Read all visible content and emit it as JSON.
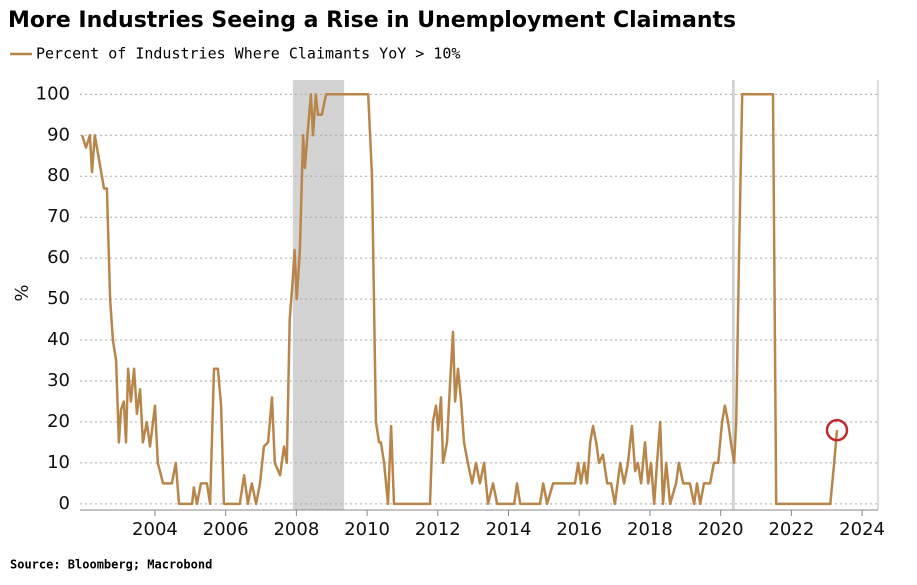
{
  "chart_data": {
    "type": "line",
    "title": "More Industries Seeing a Rise in Unemployment Claimants",
    "y_label": "%",
    "source": "Source: Bloomberg; Macrobond",
    "series": [
      {
        "name": "Percent of Industries Where Claimants YoY > 10%",
        "color": "#b8864b",
        "x": [
          2001.94,
          2002.05,
          2002.16,
          2002.22,
          2002.3,
          2002.44,
          2002.56,
          2002.64,
          2002.73,
          2002.81,
          2002.9,
          2002.98,
          2003.04,
          2003.12,
          2003.18,
          2003.24,
          2003.32,
          2003.41,
          2003.49,
          2003.58,
          2003.66,
          2003.77,
          2003.86,
          2004.0,
          2004.08,
          2004.23,
          2004.48,
          2004.59,
          2004.68,
          2005.05,
          2005.1,
          2005.19,
          2005.3,
          2005.47,
          2005.56,
          2005.67,
          2005.78,
          2005.87,
          2005.95,
          2006.4,
          2006.52,
          2006.63,
          2006.74,
          2006.86,
          2006.97,
          2007.08,
          2007.2,
          2007.31,
          2007.39,
          2007.54,
          2007.65,
          2007.73,
          2007.81,
          2007.9,
          2007.95,
          2008.01,
          2008.1,
          2008.19,
          2008.24,
          2008.33,
          2008.41,
          2008.47,
          2008.55,
          2008.61,
          2008.72,
          2008.84,
          2010.03,
          2010.14,
          2010.25,
          2010.34,
          2010.39,
          2010.48,
          2010.59,
          2010.68,
          2010.76,
          2011.78,
          2011.86,
          2011.95,
          2012.01,
          2012.09,
          2012.15,
          2012.26,
          2012.35,
          2012.43,
          2012.49,
          2012.57,
          2012.66,
          2012.74,
          2012.85,
          2012.97,
          2013.08,
          2013.19,
          2013.31,
          2013.42,
          2013.56,
          2013.68,
          2014.16,
          2014.24,
          2014.33,
          2014.89,
          2014.98,
          2015.09,
          2015.26,
          2015.88,
          2015.97,
          2016.05,
          2016.14,
          2016.22,
          2016.31,
          2016.39,
          2016.48,
          2016.56,
          2016.67,
          2016.79,
          2016.9,
          2017.01,
          2017.16,
          2017.27,
          2017.38,
          2017.49,
          2017.58,
          2017.66,
          2017.75,
          2017.86,
          2017.95,
          2018.03,
          2018.12,
          2018.2,
          2018.29,
          2018.37,
          2018.46,
          2018.57,
          2018.74,
          2018.82,
          2018.94,
          2019.13,
          2019.25,
          2019.33,
          2019.42,
          2019.53,
          2019.7,
          2019.81,
          2019.93,
          2020.04,
          2020.12,
          2020.21,
          2020.29,
          2020.38,
          2020.44,
          2020.52,
          2020.61,
          2021.48,
          2021.57,
          2023.1,
          2023.21,
          2023.29
        ],
        "values": [
          90,
          87,
          90,
          81,
          90,
          83,
          77,
          77,
          50,
          40,
          35,
          15,
          23,
          25,
          15,
          33,
          25,
          33,
          22,
          28,
          15,
          20,
          14,
          24,
          10,
          5,
          5,
          10,
          0,
          0,
          4,
          0,
          5,
          5,
          0,
          33,
          33,
          24,
          0,
          0,
          7,
          0,
          5,
          0,
          5,
          14,
          15,
          26,
          10,
          7,
          14,
          10,
          45,
          55,
          62,
          50,
          62,
          90,
          82,
          92,
          100,
          90,
          100,
          95,
          95,
          100,
          100,
          80,
          20,
          15,
          15,
          10,
          0,
          19,
          0,
          0,
          20,
          24,
          18,
          26,
          10,
          15,
          30,
          42,
          25,
          33,
          25,
          15,
          10,
          5,
          10,
          5,
          10,
          0,
          5,
          0,
          0,
          5,
          0,
          0,
          5,
          0,
          5,
          5,
          10,
          5,
          10,
          5,
          15,
          19,
          15,
          10,
          12,
          5,
          5,
          0,
          10,
          5,
          10,
          19,
          8,
          10,
          5,
          15,
          5,
          10,
          0,
          10,
          20,
          0,
          10,
          0,
          5,
          10,
          5,
          5,
          0,
          5,
          0,
          5,
          5,
          10,
          10,
          20,
          24,
          20,
          15,
          10,
          20,
          60,
          100,
          100,
          0,
          0,
          10,
          18
        ]
      }
    ],
    "recessions": [
      [
        2007.9,
        2009.35
      ],
      [
        2020.32,
        2020.4
      ]
    ],
    "recession_color": "#d3d3d3",
    "highlight_color": "#c0282d",
    "xlim": [
      2001.88,
      2024.45
    ],
    "xticks": [
      2004,
      2006,
      2008,
      2010,
      2012,
      2014,
      2016,
      2018,
      2020,
      2022,
      2024
    ],
    "ylim": [
      -1.5,
      103.5
    ],
    "yticks": [
      0,
      10,
      20,
      30,
      40,
      50,
      60,
      70,
      80,
      90,
      100
    ],
    "grid": true
  }
}
